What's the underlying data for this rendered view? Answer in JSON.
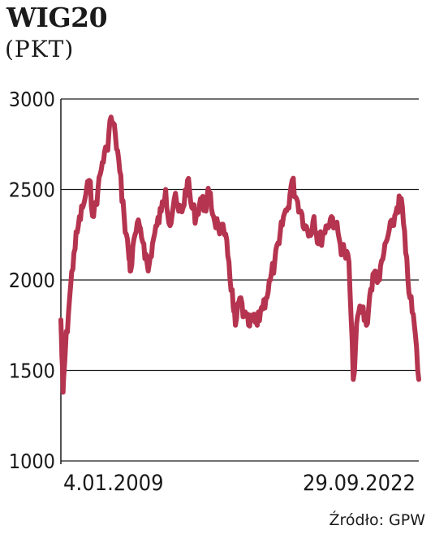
{
  "title": "WIG20",
  "subtitle": "(PKT)",
  "source": "Źródło: GPW",
  "chart_data": {
    "type": "line",
    "title": "WIG20",
    "ylabel": "(PKT)",
    "ylim": [
      1000,
      3000
    ],
    "yticks": [
      "3000",
      "2500",
      "2000",
      "1500",
      "1000"
    ],
    "x_labels": [
      "4.01.2009",
      "29.09.2022"
    ],
    "grid": true,
    "series": [
      {
        "color": "#b5344f",
        "x": [
          "2009-01",
          "2009-02",
          "2009-03",
          "2009-05",
          "2009-07",
          "2009-09",
          "2009-11",
          "2010-02",
          "2010-04",
          "2010-06",
          "2010-08",
          "2010-10",
          "2010-12",
          "2011-02",
          "2011-04",
          "2011-06",
          "2011-08",
          "2011-09",
          "2011-11",
          "2012-01",
          "2012-03",
          "2012-05",
          "2012-07",
          "2012-09",
          "2012-11",
          "2013-01",
          "2013-03",
          "2013-05",
          "2013-07",
          "2013-09",
          "2013-11",
          "2014-01",
          "2014-03",
          "2014-05",
          "2014-07",
          "2014-09",
          "2014-11",
          "2015-01",
          "2015-04",
          "2015-06",
          "2015-08",
          "2015-09",
          "2015-11",
          "2016-01",
          "2016-03",
          "2016-05",
          "2016-07",
          "2016-09",
          "2016-11",
          "2017-01",
          "2017-03",
          "2017-05",
          "2017-07",
          "2017-09",
          "2017-11",
          "2018-01",
          "2018-03",
          "2018-05",
          "2018-07",
          "2018-09",
          "2018-11",
          "2019-01",
          "2019-03",
          "2019-05",
          "2019-07",
          "2019-09",
          "2019-11",
          "2020-01",
          "2020-03",
          "2020-05",
          "2020-07",
          "2020-09",
          "2020-11",
          "2021-01",
          "2021-03",
          "2021-05",
          "2021-07",
          "2021-09",
          "2021-11",
          "2022-01",
          "2022-03",
          "2022-05",
          "2022-07",
          "2022-09"
        ],
        "values": [
          1780,
          1380,
          1600,
          1900,
          2150,
          2300,
          2400,
          2550,
          2350,
          2500,
          2650,
          2720,
          2900,
          2800,
          2600,
          2350,
          2150,
          2050,
          2250,
          2300,
          2200,
          2050,
          2200,
          2300,
          2380,
          2500,
          2300,
          2450,
          2380,
          2400,
          2550,
          2400,
          2350,
          2450,
          2400,
          2480,
          2350,
          2300,
          2250,
          2100,
          1850,
          1750,
          1900,
          1800,
          1750,
          1780,
          1750,
          1850,
          1900,
          2000,
          2100,
          2200,
          2350,
          2400,
          2550,
          2450,
          2380,
          2300,
          2250,
          2350,
          2200,
          2250,
          2300,
          2350,
          2300,
          2200,
          2150,
          2100,
          1450,
          1800,
          1850,
          1750,
          1950,
          2050,
          2000,
          2150,
          2250,
          2300,
          2400,
          2450,
          2150,
          1900,
          1750,
          1450
        ]
      }
    ]
  }
}
